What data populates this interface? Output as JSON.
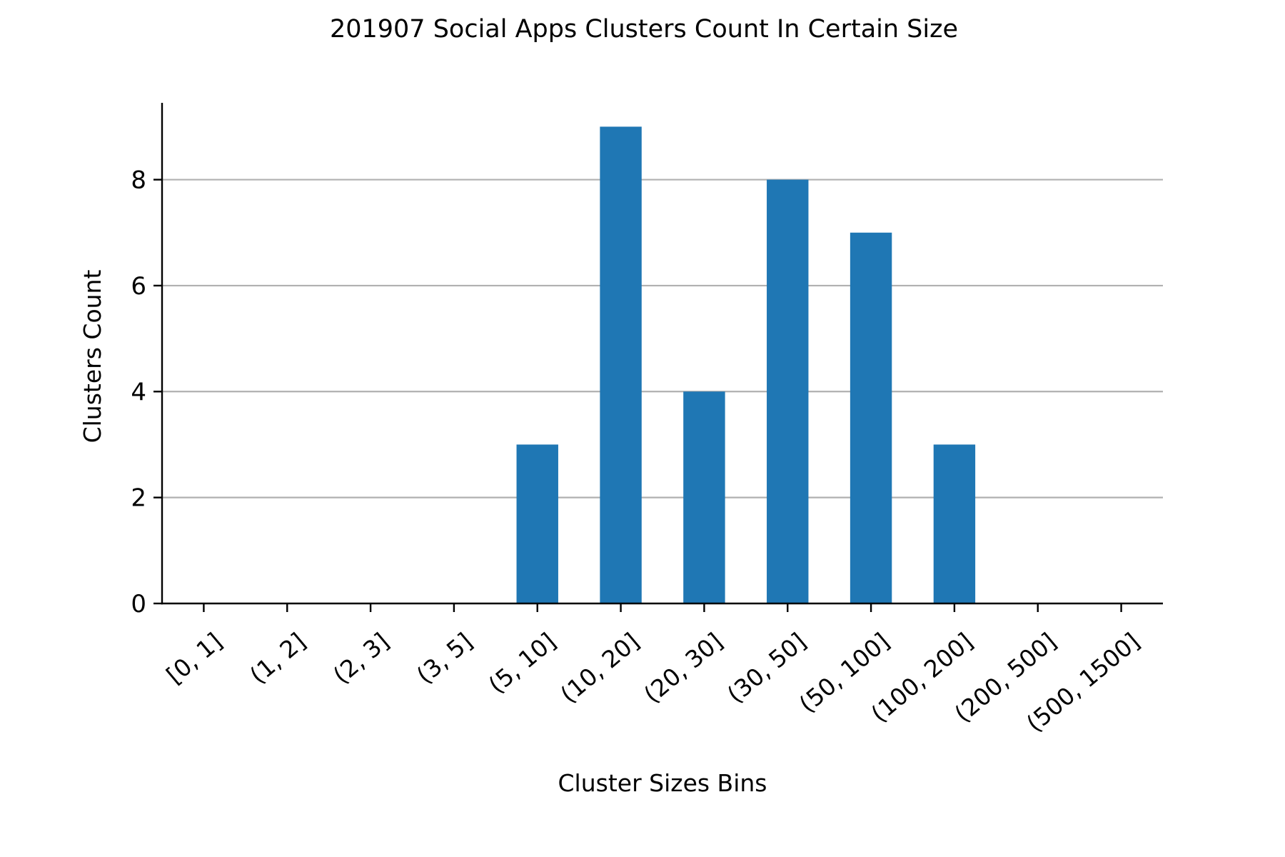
{
  "chart_data": {
    "type": "bar",
    "title": "201907 Social Apps Clusters Count In Certain Size",
    "xlabel": "Cluster Sizes Bins",
    "ylabel": "Clusters Count",
    "categories": [
      "[0, 1]",
      "(1, 2]",
      "(2, 3]",
      "(3, 5]",
      "(5, 10]",
      "(10, 20]",
      "(20, 30]",
      "(30, 50]",
      "(50, 100]",
      "(100, 200]",
      "(200, 500]",
      "(500, 1500]"
    ],
    "values": [
      0,
      0,
      0,
      0,
      3,
      9,
      4,
      8,
      7,
      3,
      0,
      0
    ],
    "ylim": [
      0,
      9.45
    ],
    "yticks": [
      0,
      2,
      4,
      6,
      8
    ],
    "grid": "horizontal",
    "legend": "none",
    "colors": {
      "bar": "#1f77b4",
      "grid": "#b0b0b0",
      "axis": "#000000"
    }
  }
}
